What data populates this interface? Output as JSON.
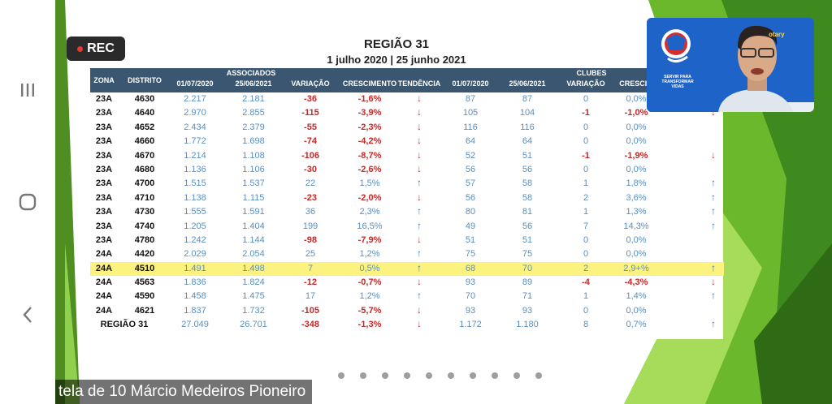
{
  "recording": {
    "label": "REC"
  },
  "slide": {
    "title": "REGIÃO 31",
    "subtitle": "1 julho 2020 |  25 junho 2021",
    "headers": {
      "zona": "ZONA",
      "distrito": "DISTRITO",
      "associados": "ASSOCIADOS",
      "clubes": "CLUBES",
      "d1": "01/07/2020",
      "d2": "25/06/2021",
      "variacao": "VARIAÇÃO",
      "crescimento": "CRESCIMENTO",
      "tendencia": "TENDÊNCIA",
      "cd1": "01/07/2020",
      "cd2": "25/06/2021",
      "cvariacao": "VARIAÇÃO",
      "ccrescimento": "CRESCIM"
    },
    "rows": [
      {
        "zona": "23A",
        "distrito": "4630",
        "a1": "2.217",
        "a2": "2.181",
        "av": "-36",
        "ac": "-1,6%",
        "at": "down",
        "c1": "87",
        "c2": "87",
        "cv": "0",
        "cc": "0,0%",
        "ct": ""
      },
      {
        "zona": "23A",
        "distrito": "4640",
        "a1": "2.970",
        "a2": "2.855",
        "av": "-115",
        "ac": "-3,9%",
        "at": "down",
        "c1": "105",
        "c2": "104",
        "cv": "-1",
        "cc": "-1,0%",
        "ct": "down"
      },
      {
        "zona": "23A",
        "distrito": "4652",
        "a1": "2.434",
        "a2": "2.379",
        "av": "-55",
        "ac": "-2,3%",
        "at": "down",
        "c1": "116",
        "c2": "116",
        "cv": "0",
        "cc": "0,0%",
        "ct": ""
      },
      {
        "zona": "23A",
        "distrito": "4660",
        "a1": "1.772",
        "a2": "1.698",
        "av": "-74",
        "ac": "-4,2%",
        "at": "down",
        "c1": "64",
        "c2": "64",
        "cv": "0",
        "cc": "0,0%",
        "ct": ""
      },
      {
        "zona": "23A",
        "distrito": "4670",
        "a1": "1.214",
        "a2": "1.108",
        "av": "-106",
        "ac": "-8,7%",
        "at": "down",
        "c1": "52",
        "c2": "51",
        "cv": "-1",
        "cc": "-1,9%",
        "ct": "down"
      },
      {
        "zona": "23A",
        "distrito": "4680",
        "a1": "1.136",
        "a2": "1.106",
        "av": "-30",
        "ac": "-2,6%",
        "at": "down",
        "c1": "56",
        "c2": "56",
        "cv": "0",
        "cc": "0,0%",
        "ct": ""
      },
      {
        "zona": "23A",
        "distrito": "4700",
        "a1": "1.515",
        "a2": "1.537",
        "av": "22",
        "ac": "1,5%",
        "at": "up",
        "c1": "57",
        "c2": "58",
        "cv": "1",
        "cc": "1,8%",
        "ct": "up"
      },
      {
        "zona": "23A",
        "distrito": "4710",
        "a1": "1.138",
        "a2": "1.115",
        "av": "-23",
        "ac": "-2,0%",
        "at": "down",
        "c1": "56",
        "c2": "58",
        "cv": "2",
        "cc": "3,6%",
        "ct": "up"
      },
      {
        "zona": "23A",
        "distrito": "4730",
        "a1": "1.555",
        "a2": "1.591",
        "av": "36",
        "ac": "2,3%",
        "at": "up",
        "c1": "80",
        "c2": "81",
        "cv": "1",
        "cc": "1,3%",
        "ct": "up"
      },
      {
        "zona": "23A",
        "distrito": "4740",
        "a1": "1.205",
        "a2": "1.404",
        "av": "199",
        "ac": "16,5%",
        "at": "up",
        "c1": "49",
        "c2": "56",
        "cv": "7",
        "cc": "14,3%",
        "ct": "up"
      },
      {
        "zona": "23A",
        "distrito": "4780",
        "a1": "1.242",
        "a2": "1.144",
        "av": "-98",
        "ac": "-7,9%",
        "at": "down",
        "c1": "51",
        "c2": "51",
        "cv": "0",
        "cc": "0,0%",
        "ct": ""
      },
      {
        "zona": "24A",
        "distrito": "4420",
        "a1": "2.029",
        "a2": "2.054",
        "av": "25",
        "ac": "1,2%",
        "at": "up",
        "c1": "75",
        "c2": "75",
        "cv": "0",
        "cc": "0,0%",
        "ct": ""
      },
      {
        "zona": "24A",
        "distrito": "4510",
        "a1": "1.491",
        "a2": "1.498",
        "av": "7",
        "ac": "0,5%",
        "at": "up",
        "c1": "68",
        "c2": "70",
        "cv": "2",
        "cc": "2,9+%",
        "ct": "up",
        "highlight": true
      },
      {
        "zona": "24A",
        "distrito": "4563",
        "a1": "1.836",
        "a2": "1.824",
        "av": "-12",
        "ac": "-0,7%",
        "at": "down",
        "c1": "93",
        "c2": "89",
        "cv": "-4",
        "cc": "-4,3%",
        "ct": "down"
      },
      {
        "zona": "24A",
        "distrito": "4590",
        "a1": "1.458",
        "a2": "1.475",
        "av": "17",
        "ac": "1,2%",
        "at": "up",
        "c1": "70",
        "c2": "71",
        "cv": "1",
        "cc": "1,4%",
        "ct": "up"
      },
      {
        "zona": "24A",
        "distrito": "4621",
        "a1": "1.837",
        "a2": "1.732",
        "av": "-105",
        "ac": "-5,7%",
        "at": "down",
        "c1": "93",
        "c2": "93",
        "cv": "0",
        "cc": "0,0%",
        "ct": ""
      }
    ],
    "total": {
      "label": "REGIÃO 31",
      "a1": "27.049",
      "a2": "26.701",
      "av": "-348",
      "ac": "-1,3%",
      "at": "down",
      "c1": "1.172",
      "c2": "1.180",
      "cv": "8",
      "cc": "0,7%",
      "ct": "up"
    }
  },
  "video": {
    "logo_text": "SERVIR PARA TRANSFORMAR VIDAS",
    "rotary": "otary"
  },
  "caption": "tela de 10 Márcio Medeiros Pioneiro",
  "nav": {
    "recent_icon": "recent-apps-icon",
    "home_icon": "home-icon",
    "back_icon": "back-icon"
  },
  "colors": {
    "header_bg": "#3b5670",
    "highlight": "#fcf280",
    "green": "#6cb82c",
    "video_bg": "#1e64c8"
  }
}
